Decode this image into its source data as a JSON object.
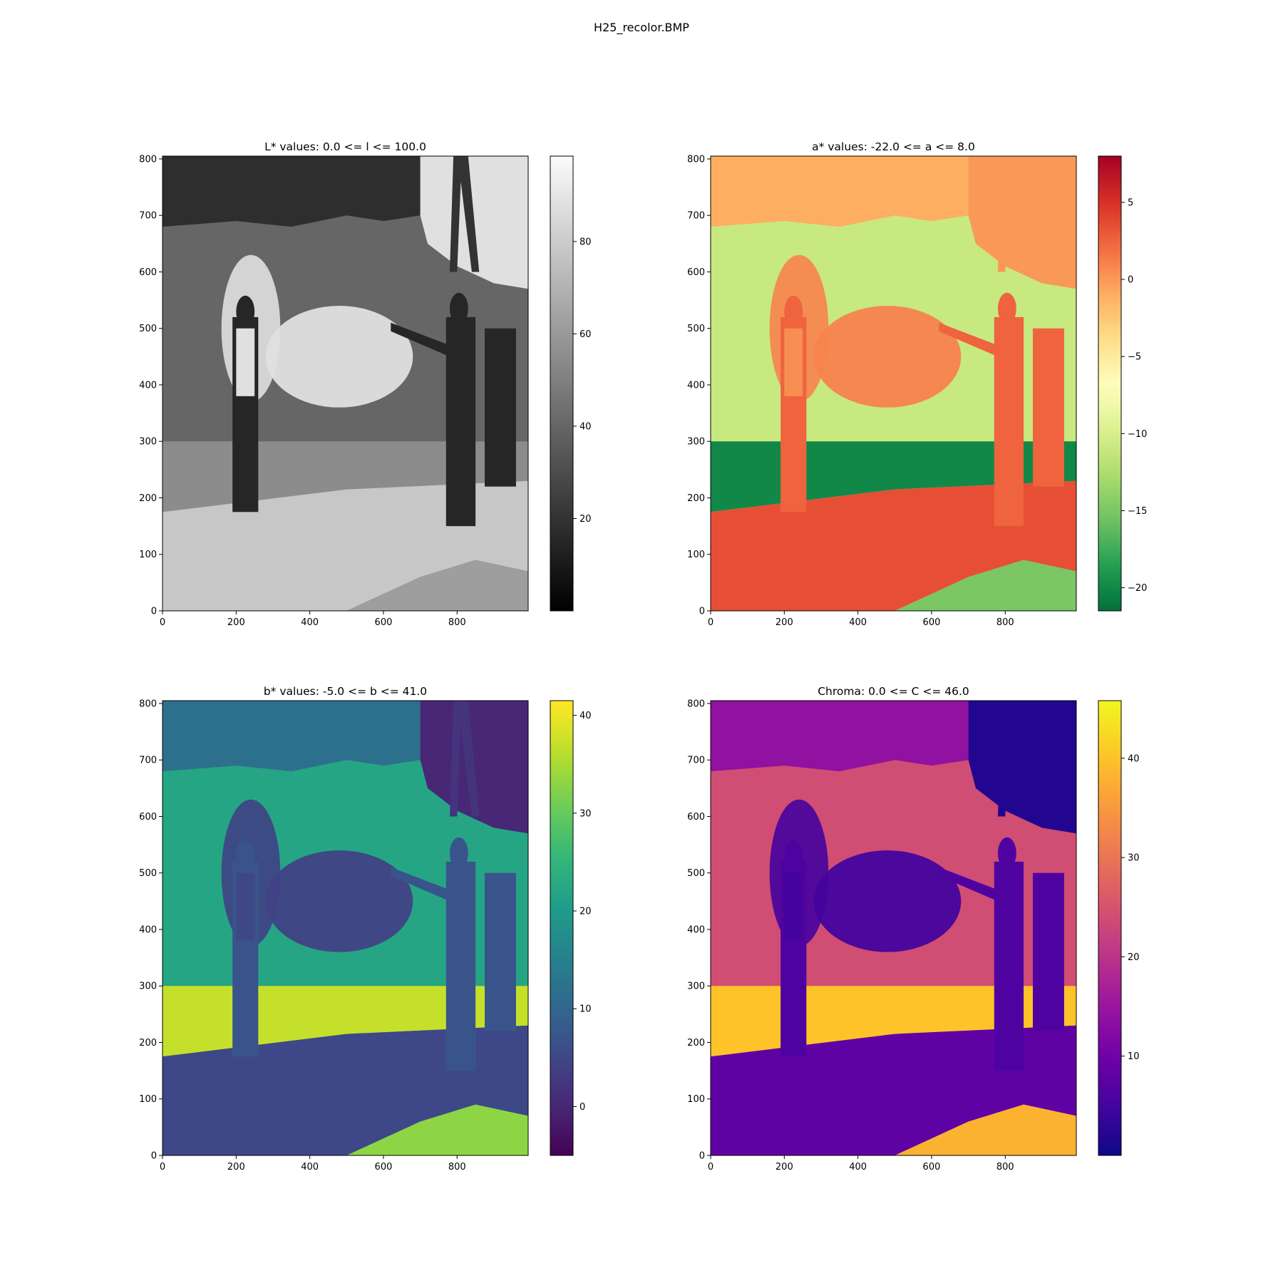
{
  "figure": {
    "title": "H25_recolor.BMP"
  },
  "chart_data": [
    {
      "type": "heatmap",
      "title": "L* values: 0.0 <= l <= 100.0",
      "colormap": "gray",
      "color_range": [
        0,
        100
      ],
      "xlim": [
        0,
        993
      ],
      "ylim": [
        0,
        805
      ],
      "x_ticks": [
        0,
        200,
        400,
        600,
        800
      ],
      "y_ticks": [
        0,
        100,
        200,
        300,
        400,
        500,
        600,
        700,
        800
      ],
      "colorbar_ticks": [
        20,
        40,
        60,
        80
      ],
      "colorbar_range": [
        0,
        98.5
      ],
      "layers": {
        "sky": 88,
        "trees": 18,
        "hedge": 40,
        "smoke": 88,
        "grass": 55,
        "road": 78,
        "road_lower": 62,
        "figure_body": 15,
        "figure_shirt": 88,
        "tower": 20
      }
    },
    {
      "type": "heatmap",
      "title": "a* values: -22.0 <= a <= 8.0",
      "colormap": "RdYlGn_r",
      "color_range": [
        -22,
        8
      ],
      "xlim": [
        0,
        993
      ],
      "ylim": [
        0,
        805
      ],
      "x_ticks": [
        0,
        200,
        400,
        600,
        800
      ],
      "y_ticks": [
        0,
        100,
        200,
        300,
        400,
        500,
        600,
        700,
        800
      ],
      "colorbar_ticks": [
        -20,
        -15,
        -10,
        -5,
        0,
        5
      ],
      "colorbar_range": [
        -21.5,
        8
      ],
      "layers": {
        "sky": 0,
        "trees": -1,
        "hedge": -11,
        "smoke": 1,
        "grass": -20,
        "road": 3.5,
        "road_lower": -15,
        "figure_body": 2.5,
        "figure_shirt": 0.5,
        "tower": 0
      }
    },
    {
      "type": "heatmap",
      "title": "b* values: -5.0 <= b <= 41.0",
      "colormap": "viridis",
      "color_range": [
        -5,
        41
      ],
      "xlim": [
        0,
        993
      ],
      "ylim": [
        0,
        805
      ],
      "x_ticks": [
        0,
        200,
        400,
        600,
        800
      ],
      "y_ticks": [
        0,
        100,
        200,
        300,
        400,
        500,
        600,
        700,
        800
      ],
      "colorbar_ticks": [
        0,
        10,
        20,
        30,
        40
      ],
      "colorbar_range": [
        -5,
        41.5
      ],
      "layers": {
        "sky": 0,
        "trees": 12,
        "hedge": 22,
        "smoke": 4,
        "grass": 37,
        "road": 5,
        "road_lower": 33,
        "figure_body": 7,
        "figure_shirt": 5,
        "tower": 2
      }
    },
    {
      "type": "heatmap",
      "title": "Chroma: 0.0 <= C <= 46.0",
      "colormap": "plasma",
      "color_range": [
        0,
        46
      ],
      "xlim": [
        0,
        993
      ],
      "ylim": [
        0,
        805
      ],
      "x_ticks": [
        0,
        200,
        400,
        600,
        800
      ],
      "y_ticks": [
        0,
        100,
        200,
        300,
        400,
        500,
        600,
        700,
        800
      ],
      "colorbar_ticks": [
        10,
        20,
        30,
        40
      ],
      "colorbar_range": [
        0,
        45.8
      ],
      "layers": {
        "sky": 2,
        "trees": 14,
        "hedge": 24,
        "smoke": 5,
        "grass": 40,
        "road": 8,
        "road_lower": 38,
        "figure_body": 6,
        "figure_shirt": 5,
        "tower": 2
      }
    }
  ]
}
